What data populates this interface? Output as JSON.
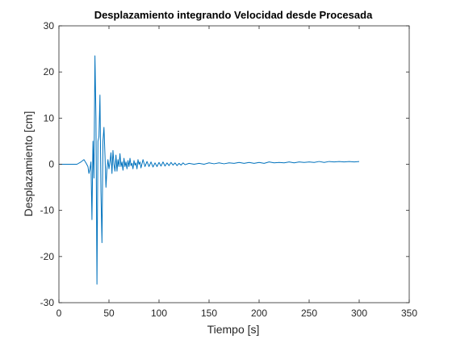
{
  "chart_data": {
    "type": "line",
    "title": "Desplazamiento integrando Velocidad desde Procesada",
    "xlabel": "Tiempo [s]",
    "ylabel": "Desplazamiento [cm]",
    "xlim": [
      0,
      350
    ],
    "ylim": [
      -30,
      30
    ],
    "xticks": [
      0,
      50,
      100,
      150,
      200,
      250,
      300,
      350
    ],
    "yticks": [
      -30,
      -20,
      -10,
      0,
      10,
      20,
      30
    ],
    "grid": false,
    "series": [
      {
        "color": "#0072BD",
        "points": [
          [
            0,
            0
          ],
          [
            18,
            0
          ],
          [
            22,
            0.5
          ],
          [
            25,
            1
          ],
          [
            27,
            0.3
          ],
          [
            29,
            -0.5
          ],
          [
            30,
            -2
          ],
          [
            31,
            -1
          ],
          [
            32,
            0.5
          ],
          [
            33,
            -12
          ],
          [
            34,
            5
          ],
          [
            35,
            -3
          ],
          [
            36,
            23.5
          ],
          [
            37,
            10
          ],
          [
            38,
            -26
          ],
          [
            39,
            5
          ],
          [
            40,
            6
          ],
          [
            41,
            15
          ],
          [
            42,
            -6
          ],
          [
            43,
            -17
          ],
          [
            44,
            5
          ],
          [
            45,
            8
          ],
          [
            46,
            2
          ],
          [
            47,
            -5
          ],
          [
            48,
            -1
          ],
          [
            49,
            1
          ],
          [
            50,
            -1
          ],
          [
            51,
            0.5
          ],
          [
            52,
            2.5
          ],
          [
            53,
            -2
          ],
          [
            54,
            3
          ],
          [
            55,
            0
          ],
          [
            56,
            -1.5
          ],
          [
            57,
            2
          ],
          [
            58,
            -1.5
          ],
          [
            59,
            1
          ],
          [
            60,
            -0.5
          ],
          [
            61,
            2.3
          ],
          [
            62,
            -0.5
          ],
          [
            63,
            0.5
          ],
          [
            64,
            -1.3
          ],
          [
            65,
            1.3
          ],
          [
            66,
            -0.5
          ],
          [
            67,
            0.5
          ],
          [
            68,
            -1
          ],
          [
            69,
            0.8
          ],
          [
            70,
            -0.5
          ],
          [
            71,
            1.3
          ],
          [
            72,
            -0.3
          ],
          [
            73,
            0.2
          ],
          [
            74,
            -1
          ],
          [
            75,
            0.8
          ],
          [
            76,
            -0.2
          ],
          [
            77,
            0.3
          ],
          [
            78,
            -1
          ],
          [
            79,
            1
          ],
          [
            80,
            0
          ],
          [
            81,
            0.5
          ],
          [
            82,
            -0.8
          ],
          [
            84,
            1
          ],
          [
            86,
            -0.5
          ],
          [
            88,
            0.6
          ],
          [
            90,
            -0.5
          ],
          [
            92,
            0.5
          ],
          [
            94,
            -0.6
          ],
          [
            96,
            0.3
          ],
          [
            98,
            -0.5
          ],
          [
            100,
            0.4
          ],
          [
            102,
            -0.4
          ],
          [
            104,
            0.5
          ],
          [
            106,
            -0.4
          ],
          [
            108,
            0.3
          ],
          [
            110,
            -0.3
          ],
          [
            112,
            0.4
          ],
          [
            114,
            -0.2
          ],
          [
            116,
            0.3
          ],
          [
            118,
            -0.3
          ],
          [
            120,
            0.2
          ],
          [
            122,
            -0.2
          ],
          [
            124,
            0.3
          ],
          [
            126,
            -0.1
          ],
          [
            130,
            0.2
          ],
          [
            135,
            0
          ],
          [
            140,
            0.2
          ],
          [
            145,
            0
          ],
          [
            150,
            0.3
          ],
          [
            155,
            0.1
          ],
          [
            160,
            0.3
          ],
          [
            165,
            0.1
          ],
          [
            170,
            0.3
          ],
          [
            175,
            0.2
          ],
          [
            180,
            0.4
          ],
          [
            185,
            0.2
          ],
          [
            190,
            0.4
          ],
          [
            195,
            0.2
          ],
          [
            200,
            0.4
          ],
          [
            205,
            0.2
          ],
          [
            210,
            0.5
          ],
          [
            215,
            0.3
          ],
          [
            220,
            0.4
          ],
          [
            225,
            0.3
          ],
          [
            230,
            0.5
          ],
          [
            235,
            0.3
          ],
          [
            240,
            0.5
          ],
          [
            245,
            0.4
          ],
          [
            250,
            0.5
          ],
          [
            255,
            0.4
          ],
          [
            260,
            0.6
          ],
          [
            265,
            0.4
          ],
          [
            270,
            0.6
          ],
          [
            275,
            0.5
          ],
          [
            280,
            0.6
          ],
          [
            285,
            0.5
          ],
          [
            290,
            0.6
          ],
          [
            295,
            0.5
          ],
          [
            300,
            0.6
          ]
        ]
      }
    ]
  }
}
